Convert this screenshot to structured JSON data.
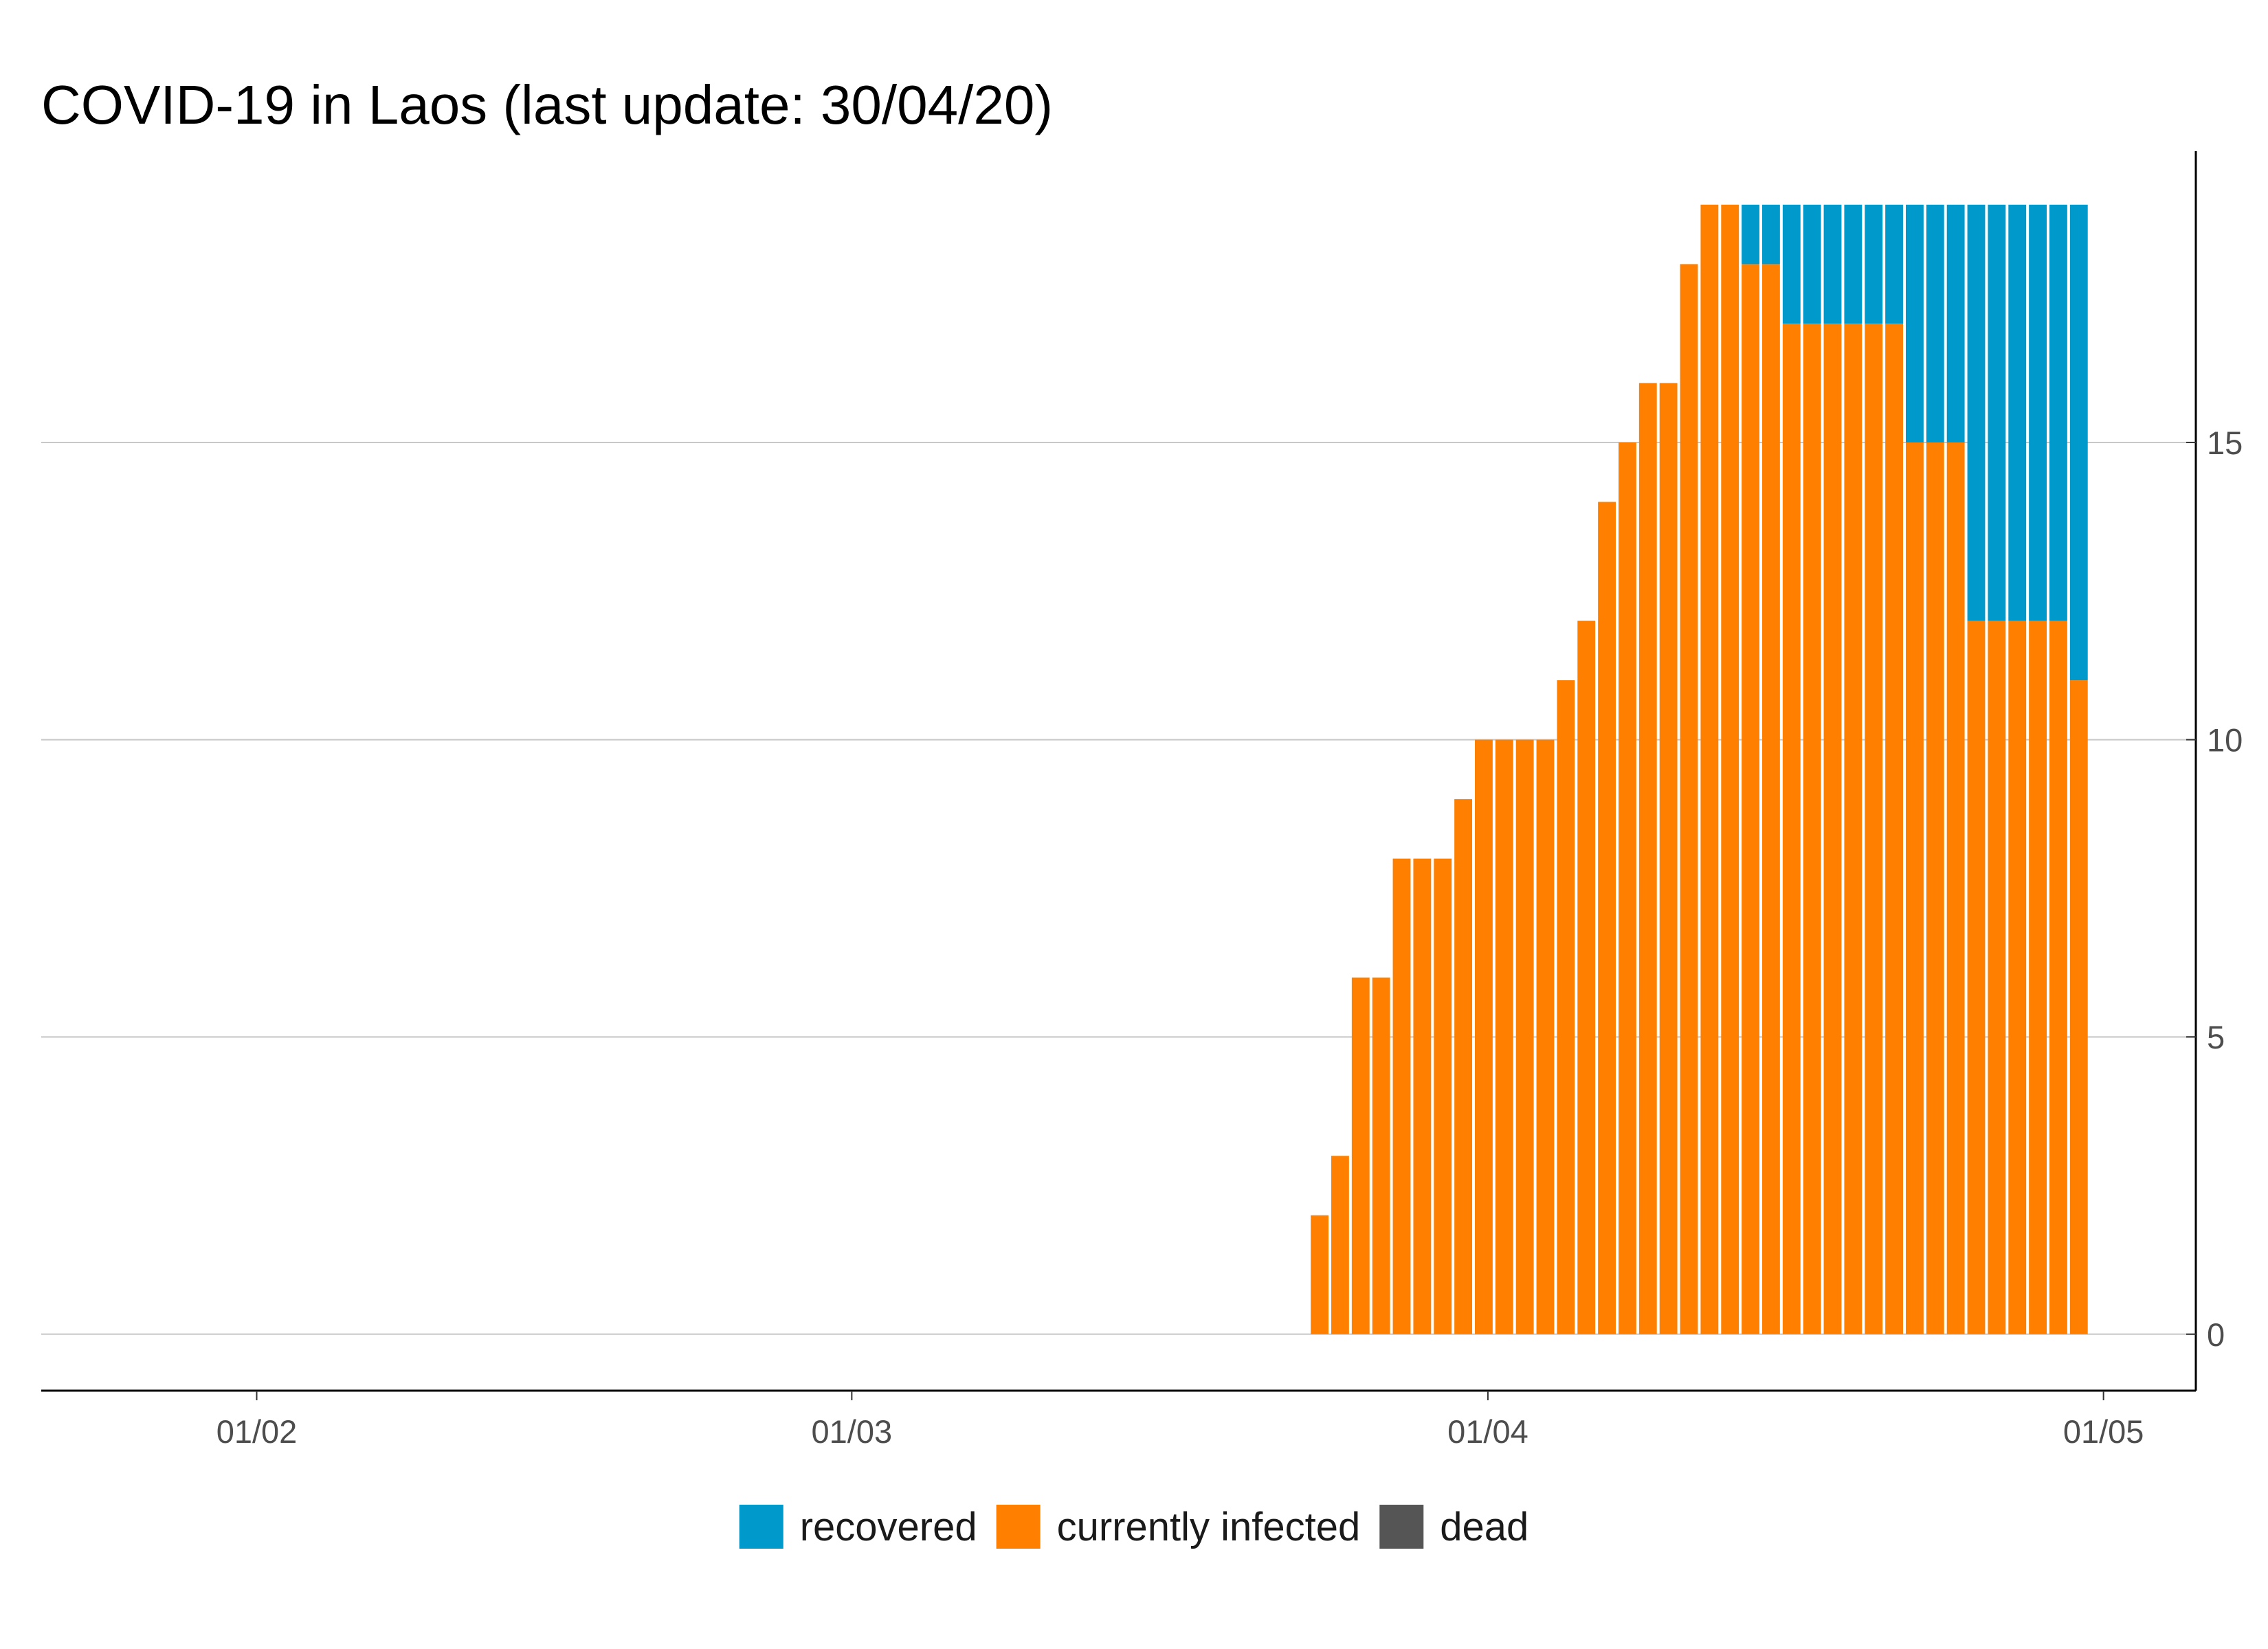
{
  "chart_data": {
    "type": "bar",
    "stacked": true,
    "title": "COVID-19 in Laos (last update: 30/04/20)",
    "xlabel": "",
    "ylabel": "",
    "x_range": [
      "2020-01-22",
      "2020-05-06"
    ],
    "ylim": [
      -0.95,
      19.9
    ],
    "y_axis_position": "right",
    "grid": "horizontal",
    "yticks": [
      {
        "value": 0,
        "label": "0"
      },
      {
        "value": 5,
        "label": "5"
      },
      {
        "value": 10,
        "label": "10"
      },
      {
        "value": 15,
        "label": "15"
      }
    ],
    "xticks": [
      {
        "date": "2020-02-01",
        "label": "01/02"
      },
      {
        "date": "2020-03-01",
        "label": "01/03"
      },
      {
        "date": "2020-04-01",
        "label": "01/04"
      },
      {
        "date": "2020-05-01",
        "label": "01/05"
      }
    ],
    "legend": {
      "position": "bottom",
      "entries": [
        {
          "key": "recovered",
          "label": "recovered",
          "color": "#0099cc"
        },
        {
          "key": "infected",
          "label": "currently infected",
          "color": "#ff8000"
        },
        {
          "key": "dead",
          "label": "dead",
          "color": "#555555"
        }
      ]
    },
    "dates": [
      "2020-03-24",
      "2020-03-25",
      "2020-03-26",
      "2020-03-27",
      "2020-03-28",
      "2020-03-29",
      "2020-03-30",
      "2020-03-31",
      "2020-04-01",
      "2020-04-02",
      "2020-04-03",
      "2020-04-04",
      "2020-04-05",
      "2020-04-06",
      "2020-04-07",
      "2020-04-08",
      "2020-04-09",
      "2020-04-10",
      "2020-04-11",
      "2020-04-12",
      "2020-04-13",
      "2020-04-14",
      "2020-04-15",
      "2020-04-16",
      "2020-04-17",
      "2020-04-18",
      "2020-04-19",
      "2020-04-20",
      "2020-04-21",
      "2020-04-22",
      "2020-04-23",
      "2020-04-24",
      "2020-04-25",
      "2020-04-26",
      "2020-04-27",
      "2020-04-28",
      "2020-04-29",
      "2020-04-30"
    ],
    "series": [
      {
        "name": "currently infected",
        "key": "infected",
        "color": "#ff8000",
        "values": [
          2,
          3,
          6,
          6,
          8,
          8,
          8,
          9,
          10,
          10,
          10,
          10,
          11,
          12,
          14,
          15,
          16,
          16,
          18,
          19,
          19,
          18,
          18,
          17,
          17,
          17,
          17,
          17,
          17,
          15,
          15,
          15,
          12,
          12,
          12,
          12,
          12,
          11
        ]
      },
      {
        "name": "recovered",
        "key": "recovered",
        "color": "#0099cc",
        "values": [
          0,
          0,
          0,
          0,
          0,
          0,
          0,
          0,
          0,
          0,
          0,
          0,
          0,
          0,
          0,
          0,
          0,
          0,
          0,
          0,
          0,
          1,
          1,
          2,
          2,
          2,
          2,
          2,
          2,
          4,
          4,
          4,
          7,
          7,
          7,
          7,
          7,
          8
        ]
      },
      {
        "name": "dead",
        "key": "dead",
        "color": "#555555",
        "values": [
          0,
          0,
          0,
          0,
          0,
          0,
          0,
          0,
          0,
          0,
          0,
          0,
          0,
          0,
          0,
          0,
          0,
          0,
          0,
          0,
          0,
          0,
          0,
          0,
          0,
          0,
          0,
          0,
          0,
          0,
          0,
          0,
          0,
          0,
          0,
          0,
          0,
          0
        ]
      }
    ]
  }
}
